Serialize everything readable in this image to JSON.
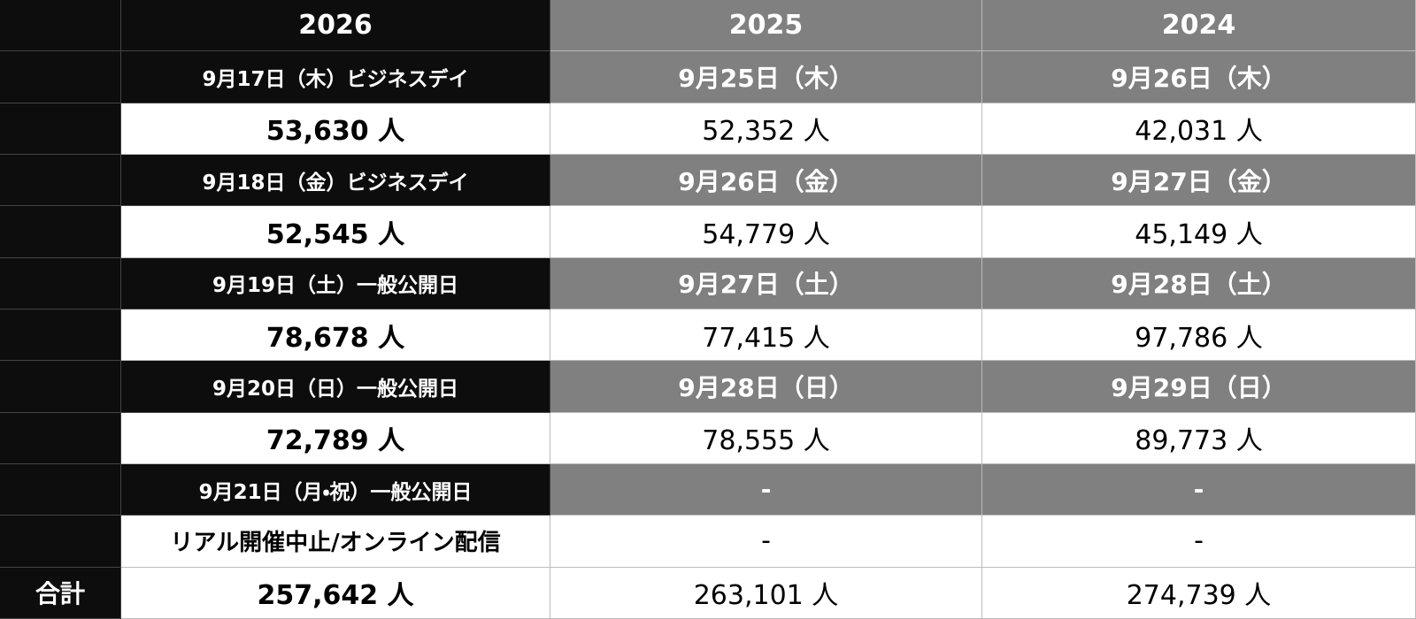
{
  "header": [
    "2026",
    "2025",
    "2024"
  ],
  "days": [
    {
      "dates": [
        "9月17日（木）ビジネスデイ",
        "9月25日（木）",
        "9月26日（木）"
      ],
      "counts": [
        "53,630 人",
        "52,352 人",
        "42,031 人"
      ]
    },
    {
      "dates": [
        "9月18日（金）ビジネスデイ",
        "9月26日（金）",
        "9月27日（金）"
      ],
      "counts": [
        "52,545 人",
        "54,779 人",
        "45,149 人"
      ]
    },
    {
      "dates": [
        "9月19日（土）一般公開日",
        "9月27日（土）",
        "9月28日（土）"
      ],
      "counts": [
        "78,678 人",
        "77,415 人",
        "97,786 人"
      ]
    },
    {
      "dates": [
        "9月20日（日）一般公開日",
        "9月28日（日）",
        "9月29日（日）"
      ],
      "counts": [
        "72,789 人",
        "78,555 人",
        "89,773 人"
      ]
    },
    {
      "dates": [
        "9月21日（月・祝）一般公開日",
        "-",
        "-"
      ],
      "counts": [
        "リアル開催中止/オンライン配信",
        "-",
        "-"
      ]
    }
  ],
  "total": {
    "label": "合計",
    "counts": [
      "257,642 人",
      "263,101 人",
      "274,739 人"
    ]
  }
}
